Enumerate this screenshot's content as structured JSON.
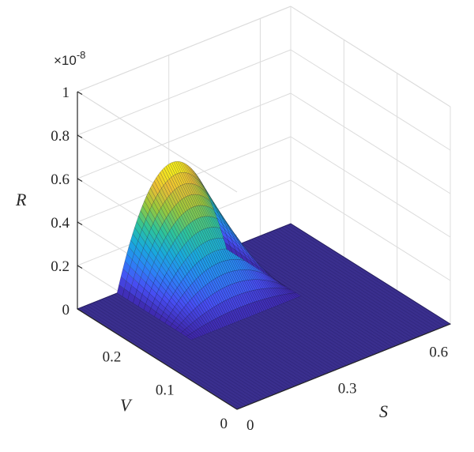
{
  "chart_data": {
    "type": "surface3d",
    "title": "",
    "xlabel": "S",
    "ylabel": "V",
    "zlabel": "R",
    "z_exponent_label": "×10",
    "z_exponent_value": "-8",
    "xlim": [
      0,
      0.7
    ],
    "ylim": [
      0,
      0.3
    ],
    "zlim": [
      0,
      1
    ],
    "x_ticks": [
      {
        "value": 0,
        "label": "0"
      },
      {
        "value": 0.3,
        "label": "0.3"
      },
      {
        "value": 0.6,
        "label": "0.6"
      }
    ],
    "y_ticks": [
      {
        "value": 0,
        "label": "0"
      },
      {
        "value": 0.1,
        "label": "0.1"
      },
      {
        "value": 0.2,
        "label": "0.2"
      }
    ],
    "z_ticks": [
      {
        "value": 0,
        "label": "0"
      },
      {
        "value": 0.2,
        "label": "0.2"
      },
      {
        "value": 0.4,
        "label": "0.4"
      },
      {
        "value": 0.6,
        "label": "0.6"
      },
      {
        "value": 0.8,
        "label": "0.8"
      },
      {
        "value": 1,
        "label": "1"
      }
    ],
    "grid": true,
    "colormap": "parula",
    "surface": {
      "description_hidden": true,
      "s_center": 0.31,
      "s_halfwidth": 0.18,
      "v_start": 0.16,
      "v_end": 0.3,
      "peak_value": 0.5
    }
  }
}
